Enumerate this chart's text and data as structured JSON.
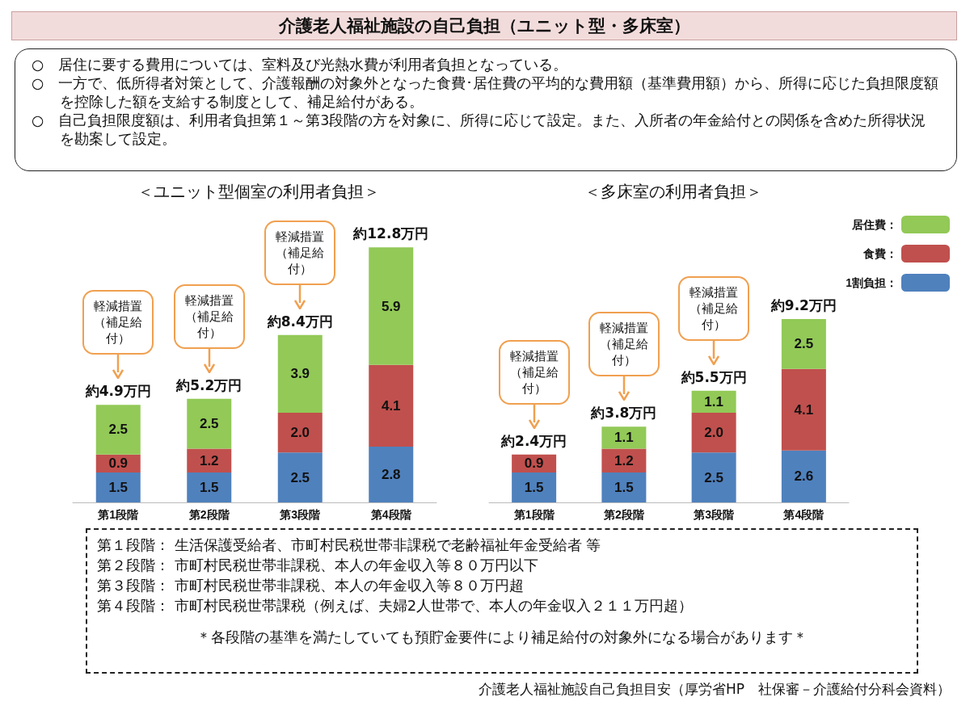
{
  "chart_data": [
    {
      "type": "other",
      "title": "介護老人福祉施設の自己負担（ユニット型・多床室）",
      "annotations": [
        "○　居住に要する費用については、室料及び光熱水費が利用者負担となっている。",
        "○　一方で、低所得者対策として、介護報酬の対象外となった食費･居住費の平均的な費用額（基準費用額）から、所得に応じた負担限度額を控除した額を支給する制度として、補足給付がある。",
        "○　自己負担限度額は、利用者負担第１～第3段階の方を対象に、所得に応じて設定。また、入所者の年金給付との関係を含めた所得状況を勘案して設定。"
      ]
    },
    {
      "type": "bar",
      "title": "＜ユニット型個室の利用者負担＞",
      "stacked": true,
      "legend": false,
      "tick_labels": "x",
      "categories": [
        "第1段階",
        "第2段階",
        "第3段階",
        "第4段階"
      ],
      "series": [
        {
          "color": "#4f81bd",
          "values": [
            1.5,
            1.5,
            2.5,
            2.8
          ],
          "value_labels": [
            "1.5",
            "1.5",
            "2.5",
            "2.8"
          ]
        },
        {
          "color": "#c0504d",
          "values": [
            0.9,
            1.2,
            2.0,
            4.1
          ],
          "value_labels": [
            "0.9",
            "1.2",
            "2.0",
            "4.1"
          ]
        },
        {
          "color": "#92c957",
          "values": [
            2.5,
            2.5,
            3.9,
            5.9
          ],
          "value_labels": [
            "2.5",
            "2.5",
            "3.9",
            "5.9"
          ]
        }
      ],
      "totals": [
        "約4.9万円",
        "約5.2万円",
        "約8.4万円",
        "約12.8万円"
      ],
      "annotations": [
        {
          "text": "軽減措置（補足給付）",
          "x": "第1段階"
        },
        {
          "text": "軽減措置（補足給付）",
          "x": "第2段階"
        },
        {
          "text": "軽減措置（補足給付）",
          "x": "第3段階"
        }
      ]
    },
    {
      "type": "bar",
      "title": "＜多床室の利用者負担＞",
      "stacked": true,
      "legend": "top right",
      "tick_labels": "x",
      "categories": [
        "第1段階",
        "第2段階",
        "第3段階",
        "第4段階"
      ],
      "series": [
        {
          "name": "1割負担：",
          "color": "#4f81bd",
          "values": [
            1.5,
            1.5,
            2.5,
            2.6
          ],
          "value_labels": [
            "1.5",
            "1.5",
            "2.5",
            "2.6"
          ]
        },
        {
          "name": "食費：",
          "color": "#c0504d",
          "values": [
            0.9,
            1.2,
            2.0,
            4.1
          ],
          "value_labels": [
            "0.9",
            "1.2",
            "2.0",
            "4.1"
          ]
        },
        {
          "name": "居住費：",
          "color": "#92c957",
          "values": [
            null,
            1.1,
            1.1,
            2.5
          ],
          "value_labels": [
            null,
            "1.1",
            "1.1",
            "2.5"
          ]
        }
      ],
      "totals": [
        "約2.4万円",
        "約3.8万円",
        "約5.5万円",
        "約9.2万円"
      ],
      "annotations": [
        {
          "text": "軽減措置（補足給付）",
          "x": "第1段階"
        },
        {
          "text": "軽減措置（補足給付）",
          "x": "第2段階"
        },
        {
          "text": "軽減措置（補足給付）",
          "x": "第3段階"
        }
      ]
    },
    {
      "type": "other",
      "annotations": [
        "第１段階： 生活保護受給者、市町村民税世帯非課税で老齢福祉年金受給者 等",
        "第２段階： 市町村民税世帯非課税、本人の年金収入等８０万円以下",
        "第３段階： 市町村民税世帯非課税、本人の年金収入等８０万円超",
        "第４段階： 市町村民税世帯課税（例えば、夫婦2人世帯で、本人の年金収入２１１万円超）",
        "＊各段階の基準を満たしていても預貯金要件により補足給付の対象外になる場合があります＊",
        "介護老人福祉施設自己負担目安（厚労省HP　社保審－介護給付分科会資料）"
      ]
    }
  ]
}
